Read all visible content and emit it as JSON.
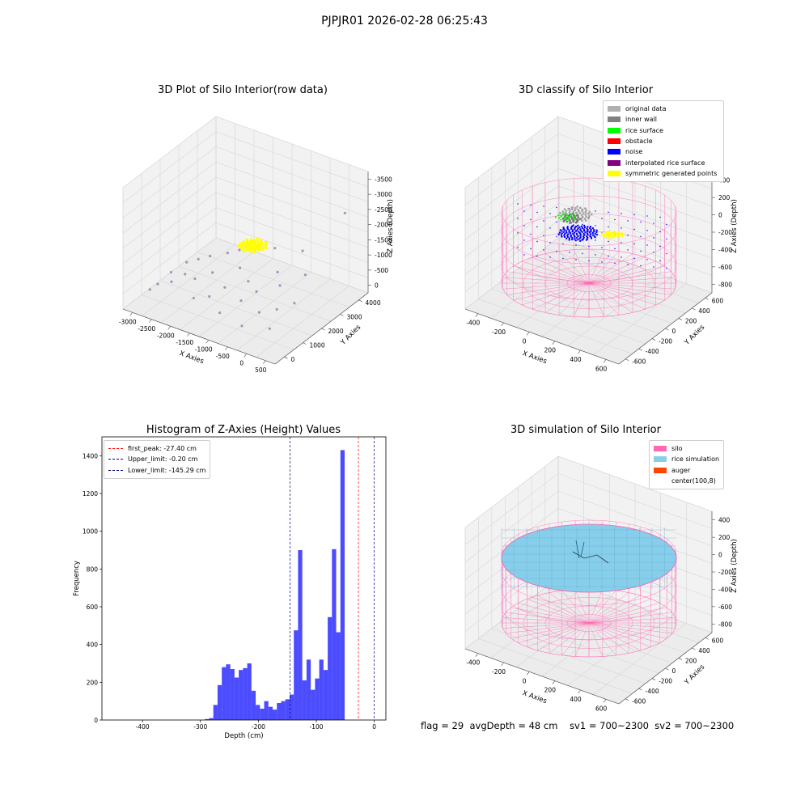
{
  "figure_title": "PJPJR01 2026-02-28 06:25:43",
  "status": {
    "flag": "flag = 29",
    "avg_depth": "avgDepth = 48 cm",
    "sv1": "sv1 = 700~2300",
    "sv2": "sv2 = 700~2300"
  },
  "colors": {
    "silo": "#ff69b4",
    "rice_sim": "#87ceeb",
    "auger": "#ff4500",
    "hist_bar": "#0000ff",
    "first_peak": "#ff0000",
    "limit": "#00008b",
    "raw_points": "#8e7fb0",
    "symmetric": "#ffff00"
  },
  "chart_data": [
    {
      "type": "scatter",
      "projection": "3d",
      "title": "3D Plot of Silo Interior(row data)",
      "xlabel": "X Axies",
      "ylabel": "Y Axies",
      "zlabel": "Z Axies (Depth)",
      "x_ticks": [
        "-3000",
        "-2500",
        "-2000",
        "-1500",
        "-1000",
        "-500",
        "0",
        "500"
      ],
      "y_ticks": [
        "0",
        "1000",
        "2000",
        "3000",
        "4000"
      ],
      "z_ticks": [
        "0",
        "-500",
        "-1000",
        "-1500",
        "-2000",
        "-2500",
        "-3000",
        "-3500"
      ],
      "xlim": [
        -3200,
        600
      ],
      "ylim": [
        -500,
        4500
      ],
      "zlim": [
        -3700,
        200
      ],
      "grid": true,
      "points": [
        [
          -2900,
          300,
          -3300
        ],
        [
          -2750,
          400,
          -3100
        ],
        [
          -2650,
          900,
          -2900
        ],
        [
          -2500,
          600,
          -3000
        ],
        [
          -2400,
          1200,
          -2600
        ],
        [
          -2300,
          900,
          -2800
        ],
        [
          -2200,
          1400,
          -2500
        ],
        [
          -2100,
          1000,
          -2900
        ],
        [
          -2000,
          1600,
          -2400
        ],
        [
          -1900,
          500,
          -3200
        ],
        [
          -1800,
          1300,
          -2700
        ],
        [
          -1700,
          1900,
          -2300
        ],
        [
          -1600,
          700,
          -3100
        ],
        [
          -1500,
          2100,
          -2200
        ],
        [
          -1400,
          1100,
          -2900
        ],
        [
          -1300,
          1700,
          -2500
        ],
        [
          -1200,
          400,
          -3300
        ],
        [
          -1100,
          2300,
          -2100
        ],
        [
          -1000,
          1500,
          -2700
        ],
        [
          -900,
          900,
          -3000
        ],
        [
          -800,
          2500,
          -2000
        ],
        [
          -700,
          1300,
          -2800
        ],
        [
          -600,
          300,
          -3400
        ],
        [
          -500,
          2000,
          -2400
        ],
        [
          -400,
          800,
          -3100
        ],
        [
          -300,
          1700,
          -2600
        ],
        [
          -200,
          2700,
          -1900
        ],
        [
          -100,
          1100,
          -3000
        ],
        [
          0,
          500,
          -3300
        ],
        [
          100,
          2200,
          -2300
        ],
        [
          200,
          1400,
          -2800
        ],
        [
          300,
          3900,
          -1000
        ]
      ],
      "cluster": {
        "name": "",
        "x": -1300,
        "y": 2400,
        "z": -2100
      }
    },
    {
      "type": "scatter",
      "projection": "3d",
      "title": "3D classify of Silo Interior",
      "xlabel": "X Axies",
      "ylabel": "Y Axies",
      "zlabel": "Z Axies (Depth)",
      "x_ticks": [
        "-400",
        "-200",
        "0",
        "200",
        "400",
        "600"
      ],
      "y_ticks": [
        "-600",
        "-400",
        "-200",
        "0",
        "200",
        "400",
        "600"
      ],
      "z_ticks": [
        "-800",
        "-600",
        "-400",
        "-200",
        "0",
        "200",
        "400"
      ],
      "xlim": [
        -500,
        700
      ],
      "ylim": [
        -650,
        650
      ],
      "zlim": [
        -900,
        450
      ],
      "grid": true,
      "legend_position": "top-right",
      "legend": [
        {
          "label": "original data",
          "color": "#b0b0b0"
        },
        {
          "label": "inner wall",
          "color": "#808080"
        },
        {
          "label": "rice surface",
          "color": "#00ff00"
        },
        {
          "label": "obstacle",
          "color": "#ff0000"
        },
        {
          "label": "noise",
          "color": "#0000ff"
        },
        {
          "label": "interpolated rice surface",
          "color": "#800080"
        },
        {
          "label": "symmetric generated points",
          "color": "#ffff00"
        }
      ]
    },
    {
      "type": "bar",
      "title": "Histogram of Z-Axies (Height) Values",
      "xlabel": "Depth (cm)",
      "ylabel": "Frequency",
      "xlim": [
        -470,
        20
      ],
      "ylim": [
        0,
        1500
      ],
      "x_ticks": [
        -400,
        -300,
        -200,
        -100,
        0
      ],
      "y_ticks": [
        0,
        200,
        400,
        600,
        800,
        1000,
        1200,
        1400
      ],
      "bin_width": 7.31,
      "bin_start": -292.4,
      "values": [
        5,
        10,
        80,
        185,
        280,
        295,
        270,
        225,
        265,
        275,
        300,
        155,
        80,
        60,
        100,
        70,
        55,
        90,
        100,
        110,
        135,
        475,
        900,
        210,
        320,
        160,
        220,
        320,
        265,
        545,
        905,
        465,
        1430
      ],
      "legend_position": "top-left",
      "lines": [
        {
          "label": "first_peak: -27.40 cm",
          "x": -27.4,
          "color": "#ff0000"
        },
        {
          "label": "Upper_limit: -0.20 cm",
          "x": -0.2,
          "color": "#00008b"
        },
        {
          "label": "Lower_limit: -145.29 cm",
          "x": -145.29,
          "color": "#00008b"
        }
      ]
    },
    {
      "type": "area",
      "projection": "3d",
      "title": "3D simulation of Silo Interior",
      "xlabel": "X Axies",
      "ylabel": "Y Axies",
      "zlabel": "Z Axies (Depth)",
      "x_ticks": [
        "-400",
        "-200",
        "0",
        "200",
        "400",
        "600"
      ],
      "y_ticks": [
        "-600",
        "-400",
        "-200",
        "0",
        "200",
        "400",
        "600"
      ],
      "z_ticks": [
        "-800",
        "-600",
        "-400",
        "-200",
        "0",
        "200",
        "400"
      ],
      "grid": true,
      "legend_position": "top-right",
      "legend": [
        {
          "label": "silo",
          "color": "#ff69b4"
        },
        {
          "label": "rice simulation",
          "color": "#87ceeb"
        },
        {
          "label": "auger",
          "color": "#ff4500"
        },
        {
          "label": "center(100,8)",
          "color": ""
        }
      ]
    }
  ]
}
